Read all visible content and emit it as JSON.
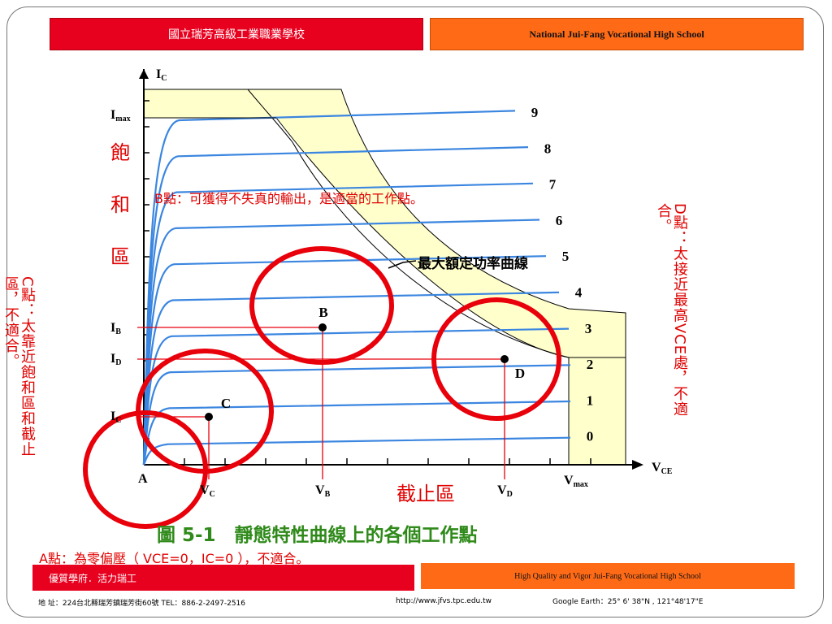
{
  "header": {
    "left_title": "國立瑞芳高級工業職業學校",
    "right_title": "National Jui-Fang Vocational High School"
  },
  "footer": {
    "left_label": "優質學府．活力瑞工",
    "right_label": "High Quality and Vigor Jui-Fang Vocational High School",
    "address": "地 址：224台北縣瑞芳鎮瑞芳街60號 TEL：886-2-2497-2516",
    "url": "http://www.jfvs.tpc.edu.tw",
    "geo": "Google Earth：25° 6' 38\"N , 121°48'17\"E"
  },
  "notes": {
    "b_point": "B點：可獲得不失真的輸出，是適當的工作點。",
    "d_point": "D點：太接近最高VCE處，不適合。",
    "c_point": "C點：太靠近飽和區和截止區，不適合。",
    "a_point": "A點：為零偏壓（ VCE=0，IC=0 ），不適合。"
  },
  "colors": {
    "curve": "#3b86e0",
    "circle": "#e8000a",
    "region_fill": "#ffffcc",
    "header_left": "#e8001f",
    "header_right": "#ff6a16",
    "caption": "#2f8a1a",
    "annotation": "#e00000"
  },
  "chart_data": {
    "type": "line",
    "title": "圖 5-1　靜態特性曲線上的各個工作點",
    "xlabel": "VCE",
    "ylabel": "IC",
    "grid": false,
    "x_tick_count": 12,
    "y_tick_count": 14,
    "series": [
      {
        "name": "0",
        "saturation_level": 0.1
      },
      {
        "name": "1",
        "saturation_level": 0.2
      },
      {
        "name": "2",
        "saturation_level": 0.3
      },
      {
        "name": "3",
        "saturation_level": 0.4
      },
      {
        "name": "4",
        "saturation_level": 0.5
      },
      {
        "name": "5",
        "saturation_level": 0.6
      },
      {
        "name": "6",
        "saturation_level": 0.7
      },
      {
        "name": "7",
        "saturation_level": 0.8
      },
      {
        "name": "8",
        "saturation_level": 0.9
      },
      {
        "name": "9",
        "saturation_level": 1.0
      }
    ],
    "labels": {
      "y_max": "I",
      "y_max_sub": "max",
      "ib": "I",
      "ib_sub": "B",
      "id": "I",
      "id_sub": "D",
      "ic_point": "I",
      "ic_point_sub": "C",
      "ic_axis": "I",
      "ic_axis_sub": "C",
      "vce": "V",
      "vce_sub": "CE",
      "vc": "V",
      "vc_sub": "C",
      "vb": "V",
      "vb_sub": "B",
      "vd": "V",
      "vd_sub": "D",
      "vmax": "V",
      "vmax_sub": "max",
      "origin": "A"
    },
    "points": [
      {
        "name": "B",
        "x_rel": 0.42,
        "curve": 4.1
      },
      {
        "name": "C",
        "x_rel": 0.15,
        "curve": 1.9
      },
      {
        "name": "D",
        "x_rel": 0.84,
        "curve": 3.2
      }
    ],
    "regions": {
      "saturation": "飽和區",
      "cutoff": "截止區",
      "max_power": "最大額定功率曲線"
    }
  }
}
